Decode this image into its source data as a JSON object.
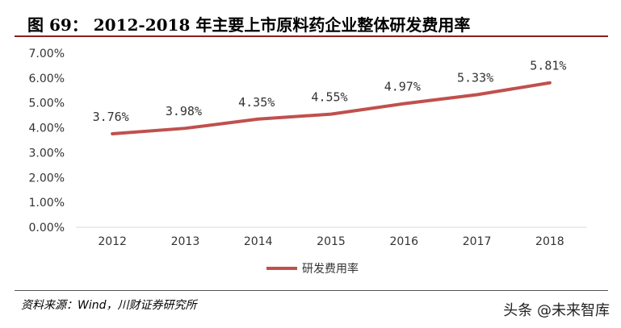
{
  "header": {
    "title": "图 69： 2012-2018 年主要上市原料药企业整体研发费用率"
  },
  "chart_data": {
    "type": "line",
    "categories": [
      "2012",
      "2013",
      "2014",
      "2015",
      "2016",
      "2017",
      "2018"
    ],
    "series": [
      {
        "name": "研发费用率",
        "values": [
          3.76,
          3.98,
          4.35,
          4.55,
          4.97,
          5.33,
          5.81
        ],
        "labels": [
          "3.76%",
          "3.98%",
          "4.35%",
          "4.55%",
          "4.97%",
          "5.33%",
          "5.81%"
        ],
        "color": "#c0504d"
      }
    ],
    "y_ticks": [
      "0.00%",
      "1.00%",
      "2.00%",
      "3.00%",
      "4.00%",
      "5.00%",
      "6.00%",
      "7.00%"
    ],
    "ylim": [
      0,
      7
    ],
    "grid": false,
    "legend_position": "bottom"
  },
  "footer": {
    "source": "资料来源：Wind，川财证券研究所",
    "watermark": "头条 @未来智库"
  }
}
